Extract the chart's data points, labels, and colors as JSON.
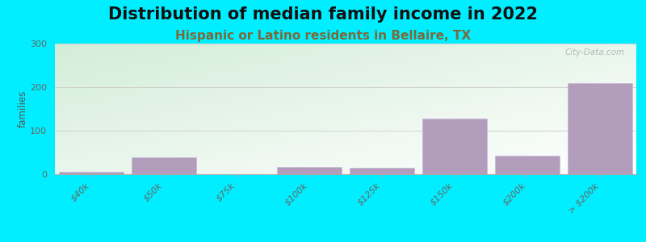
{
  "title": "Distribution of median family income in 2022",
  "subtitle": "Hispanic or Latino residents in Bellaire, TX",
  "categories": [
    "$40k",
    "$50k",
    "$75k",
    "$100k",
    "$125k",
    "$150k",
    "$200k",
    "> $200k"
  ],
  "values": [
    5,
    38,
    0,
    16,
    15,
    128,
    43,
    210
  ],
  "bar_color": "#b39dbd",
  "bar_edge_color": "#c8b8d8",
  "ylim": [
    0,
    300
  ],
  "yticks": [
    0,
    100,
    200,
    300
  ],
  "ylabel": "families",
  "outer_background": "#00eeff",
  "title_fontsize": 15,
  "subtitle_fontsize": 11,
  "subtitle_color": "#7a6a3a",
  "watermark": "City-Data.com"
}
